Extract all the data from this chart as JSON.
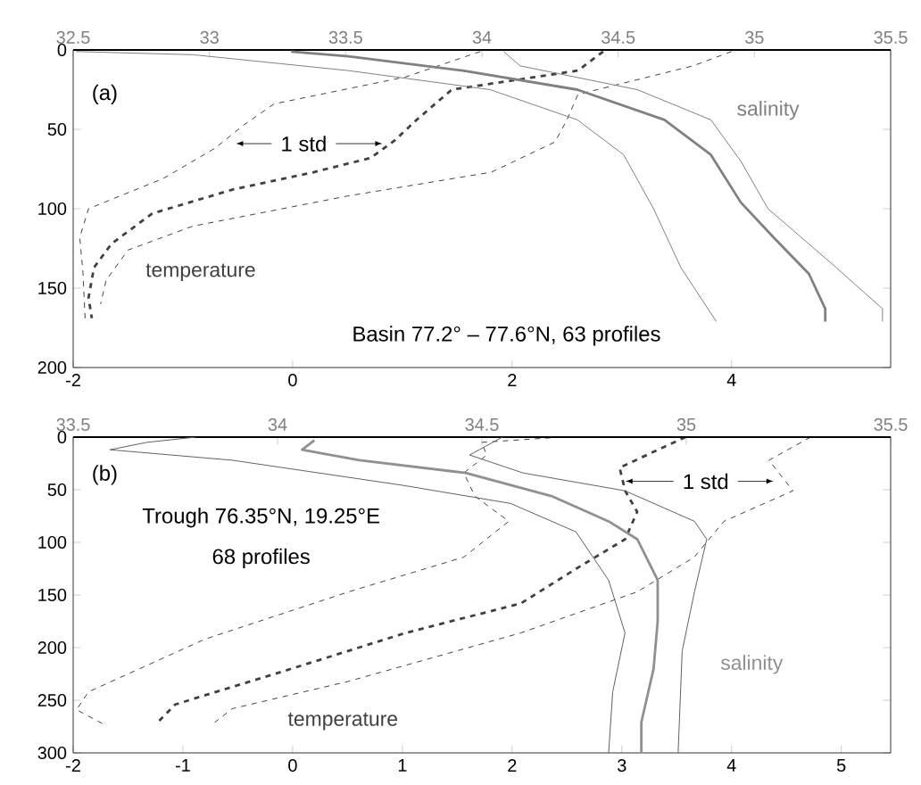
{
  "chart_data": [
    {
      "type": "line",
      "xlim": [
        -2,
        5.45
      ],
      "xticks": [
        -2,
        0,
        2,
        4
      ],
      "x2lim": [
        32.5,
        35.5
      ],
      "x2ticks": [
        32.5,
        33,
        33.5,
        34,
        34.5,
        35,
        35.5
      ],
      "ylim": [
        200,
        0
      ],
      "yticks": [
        0,
        50,
        100,
        150,
        200
      ],
      "grid": false,
      "annotations": [
        "(a)",
        {
          "text": "1 std",
          "x": 0.85,
          "y": 59
        },
        "Basin 77.2° – 77.6°N, 63 profiles"
      ],
      "series": [
        {
          "name": "temperature",
          "color": "#404040",
          "line_style": "dashed",
          "x": [
            2.83,
            2.6,
            1.45,
            1.13,
            0.93,
            0.71,
            0.19,
            -0.55,
            -1.28,
            -1.65,
            -1.81,
            -1.86,
            -1.83
          ],
          "values": [
            1,
            13,
            25,
            44,
            57,
            68,
            77,
            88,
            103,
            122,
            137,
            156,
            169
          ]
        },
        {
          "color": "#404040",
          "line_style": "dashed",
          "x": [
            1.71,
            1.03,
            -0.17,
            -0.44,
            -0.71,
            -1.18,
            -1.86,
            -1.94,
            -1.91,
            -1.89
          ],
          "values": [
            1,
            17,
            34,
            47,
            62,
            81,
            100,
            118,
            141,
            171
          ]
        },
        {
          "color": "#404040",
          "line_style": "dashed",
          "x": [
            4.0,
            3.65,
            2.6,
            2.5,
            2.39,
            1.81,
            0.5,
            -0.91,
            -1.5,
            -1.7,
            -1.75
          ],
          "values": [
            1,
            10,
            28,
            44,
            58,
            77,
            92,
            111,
            126,
            145,
            160
          ]
        },
        {
          "name": "salinity",
          "color": "#808080",
          "line_style": "solid",
          "axis": "x2",
          "x": [
            33.3,
            33.51,
            33.93,
            34.35,
            34.67,
            34.84,
            34.95,
            35.07,
            35.2,
            35.26,
            35.26
          ],
          "values": [
            1,
            4,
            13,
            25,
            44,
            66,
            96,
            118,
            141,
            163,
            171
          ]
        },
        {
          "color": "#808080",
          "line_style": "solid",
          "axis": "x2",
          "x": [
            32.51,
            32.94,
            33.51,
            34.03,
            34.35,
            34.52,
            34.63,
            34.73,
            34.86
          ],
          "values": [
            1,
            3,
            13,
            25,
            44,
            66,
            100,
            137,
            171
          ]
        },
        {
          "color": "#808080",
          "line_style": "solid",
          "axis": "x2",
          "x": [
            34.08,
            34.14,
            34.57,
            34.84,
            34.95,
            35.05,
            35.3,
            35.47,
            35.47
          ],
          "values": [
            1,
            10,
            25,
            44,
            70,
            100,
            137,
            163,
            171
          ]
        }
      ]
    },
    {
      "type": "line",
      "xlim": [
        -2,
        5.45
      ],
      "xticks": [
        -2,
        -1,
        0,
        1,
        2,
        3,
        4,
        5
      ],
      "x2lim": [
        33.5,
        35.5
      ],
      "x2ticks": [
        33.5,
        34,
        34.5,
        35,
        35.5
      ],
      "ylim": [
        300,
        0
      ],
      "yticks": [
        0,
        50,
        100,
        150,
        200,
        250,
        300
      ],
      "grid": false,
      "annotations": [
        "(b)",
        {
          "text": "1 std",
          "x": 3.0,
          "y": 42
        },
        "Trough 76.35°N, 19.25°E",
        "68 profiles"
      ],
      "series": [
        {
          "name": "temperature",
          "color": "#404040",
          "line_style": "dashed",
          "x": [
            3.58,
            2.98,
            3.03,
            3.14,
            3.03,
            2.6,
            2.08,
            1.03,
            -0.01,
            -1.07,
            -1.23
          ],
          "values": [
            0,
            29,
            51,
            71,
            97,
            124,
            158,
            186,
            220,
            254,
            271
          ]
        },
        {
          "color": "#404040",
          "line_style": "dashed",
          "x": [
            2.45,
            1.72,
            1.77,
            1.56,
            1.66,
            1.97,
            1.56,
            0.51,
            -0.8,
            -1.86,
            -1.97,
            -1.7
          ],
          "values": [
            0,
            5,
            17,
            34,
            56,
            80,
            114,
            147,
            192,
            242,
            259,
            274
          ]
        },
        {
          "color": "#404040",
          "line_style": "dashed",
          "x": [
            4.72,
            4.34,
            4.56,
            3.93,
            3.66,
            3.14,
            2.08,
            0.51,
            -0.55,
            -0.71
          ],
          "values": [
            0,
            22,
            51,
            80,
            114,
            147,
            186,
            232,
            258,
            271
          ]
        },
        {
          "name": "salinity",
          "color": "#909090",
          "line_style": "solid",
          "axis": "x2",
          "x": [
            34.09,
            34.06,
            34.2,
            34.46,
            34.67,
            34.81,
            34.88,
            34.93,
            34.93,
            34.92,
            34.89,
            34.89
          ],
          "values": [
            3,
            12,
            22,
            34,
            56,
            80,
            97,
            136,
            175,
            220,
            271,
            300
          ]
        },
        {
          "color": "#606060",
          "line_style": "solid",
          "axis": "x2",
          "x": [
            33.8,
            33.68,
            33.59,
            33.89,
            34.31,
            34.57,
            34.73,
            34.81,
            34.85,
            34.82,
            34.81
          ],
          "values": [
            0,
            5,
            12,
            22,
            46,
            63,
            90,
            136,
            186,
            242,
            300
          ]
        },
        {
          "color": "#606060",
          "line_style": "solid",
          "axis": "x2",
          "x": [
            34.55,
            34.47,
            34.6,
            34.85,
            35.02,
            35.05,
            35.02,
            34.99,
            34.98
          ],
          "values": [
            0,
            17,
            34,
            51,
            80,
            97,
            147,
            203,
            300
          ]
        }
      ]
    }
  ]
}
